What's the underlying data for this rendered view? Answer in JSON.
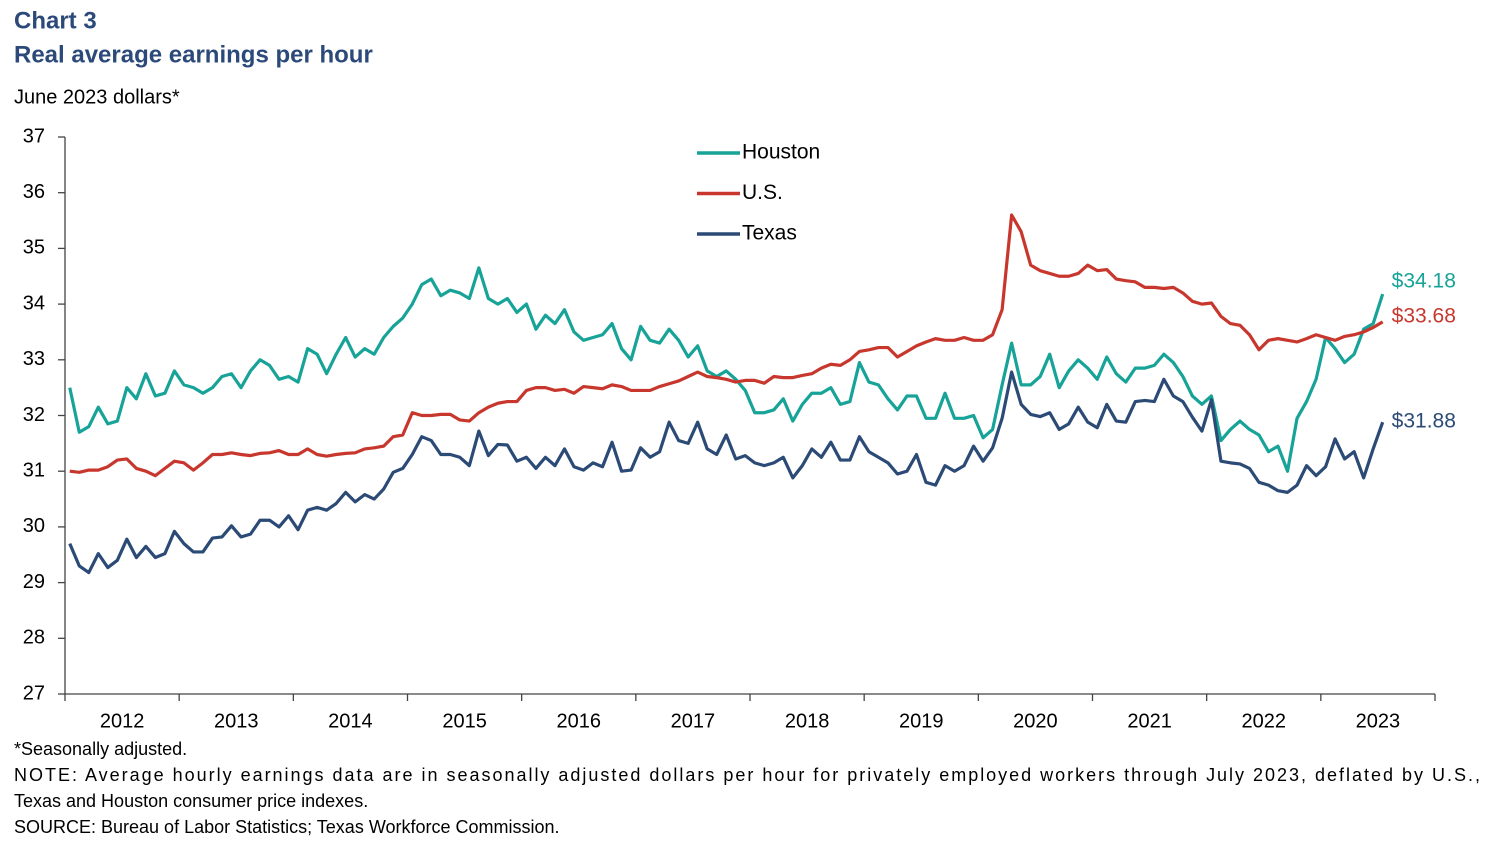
{
  "chart_data": {
    "type": "line",
    "title": "Chart 3",
    "subtitle": "Real average earnings per hour",
    "y_label": "June 2023 dollars*",
    "notes": [
      "*Seasonally adjusted.",
      "NOTE: Average hourly earnings data are in seasonally adjusted dollars per hour for privately employed workers through July 2023, deflated by U.S., Texas and Houston consumer price indexes.",
      "SOURCE: Bureau of Labor Statistics; Texas Workforce Commission."
    ],
    "legend": "top",
    "ylim": [
      27,
      37
    ],
    "yticks": [
      27,
      28,
      29,
      30,
      31,
      32,
      33,
      34,
      35,
      36,
      37
    ],
    "grid": false,
    "categories": [
      "2012",
      null,
      null,
      null,
      null,
      null,
      null,
      null,
      null,
      null,
      null,
      null,
      "2013",
      null,
      null,
      null,
      null,
      null,
      null,
      null,
      null,
      null,
      null,
      null,
      "2014",
      null,
      null,
      null,
      null,
      null,
      null,
      null,
      null,
      null,
      null,
      null,
      "2015",
      null,
      null,
      null,
      null,
      null,
      null,
      null,
      null,
      null,
      null,
      null,
      "2016",
      null,
      null,
      null,
      null,
      null,
      null,
      null,
      null,
      null,
      null,
      null,
      "2017",
      null,
      null,
      null,
      null,
      null,
      null,
      null,
      null,
      null,
      null,
      null,
      "2018",
      null,
      null,
      null,
      null,
      null,
      null,
      null,
      null,
      null,
      null,
      null,
      "2019",
      null,
      null,
      null,
      null,
      null,
      null,
      null,
      null,
      null,
      null,
      null,
      "2020",
      null,
      null,
      null,
      null,
      null,
      null,
      null,
      null,
      null,
      null,
      null,
      "2021",
      null,
      null,
      null,
      null,
      null,
      null,
      null,
      null,
      null,
      null,
      null,
      "2022",
      null,
      null,
      null,
      null,
      null,
      null,
      null,
      null,
      null,
      null,
      null,
      "2023",
      null,
      null,
      null,
      null,
      null,
      null
    ],
    "series": [
      {
        "name": "Houston",
        "color": "#17a398",
        "last_value_label": "$34.18",
        "values": [
          32.5,
          31.7,
          31.8,
          32.15,
          31.85,
          31.9,
          32.5,
          32.3,
          32.75,
          32.35,
          32.4,
          32.8,
          32.55,
          32.5,
          32.4,
          32.5,
          32.7,
          32.75,
          32.5,
          32.8,
          33.0,
          32.9,
          32.65,
          32.7,
          32.6,
          33.2,
          33.1,
          32.75,
          33.1,
          33.4,
          33.05,
          33.2,
          33.1,
          33.4,
          33.6,
          33.75,
          34.0,
          34.35,
          34.45,
          34.15,
          34.25,
          34.2,
          34.1,
          34.65,
          34.1,
          34.0,
          34.1,
          33.85,
          34.0,
          33.55,
          33.8,
          33.65,
          33.9,
          33.5,
          33.35,
          33.4,
          33.45,
          33.65,
          33.2,
          33.0,
          33.6,
          33.35,
          33.3,
          33.55,
          33.35,
          33.05,
          33.25,
          32.8,
          32.7,
          32.8,
          32.65,
          32.45,
          32.05,
          32.05,
          32.1,
          32.3,
          31.9,
          32.2,
          32.4,
          32.4,
          32.5,
          32.2,
          32.25,
          32.95,
          32.6,
          32.55,
          32.3,
          32.1,
          32.35,
          32.35,
          31.95,
          31.95,
          32.4,
          31.95,
          31.95,
          32.0,
          31.6,
          31.75,
          32.55,
          33.3,
          32.55,
          32.55,
          32.7,
          33.1,
          32.5,
          32.8,
          33.0,
          32.85,
          32.65,
          33.05,
          32.75,
          32.6,
          32.85,
          32.85,
          32.9,
          33.1,
          32.95,
          32.7,
          32.35,
          32.2,
          32.35,
          31.55,
          31.75,
          31.9,
          31.75,
          31.65,
          31.35,
          31.45,
          31.0,
          31.95,
          32.25,
          32.65,
          33.4,
          33.2,
          32.95,
          33.1,
          33.55,
          33.65,
          34.18
        ]
      },
      {
        "name": "U.S.",
        "color": "#c8372d",
        "last_value_label": "$33.68",
        "values": [
          31.0,
          30.98,
          31.02,
          31.02,
          31.08,
          31.2,
          31.22,
          31.05,
          31.0,
          30.92,
          31.05,
          31.18,
          31.15,
          31.02,
          31.15,
          31.3,
          31.3,
          31.33,
          31.3,
          31.28,
          31.32,
          31.33,
          31.37,
          31.3,
          31.3,
          31.4,
          31.3,
          31.27,
          31.3,
          31.32,
          31.33,
          31.4,
          31.42,
          31.45,
          31.62,
          31.65,
          32.05,
          32.0,
          32.0,
          32.02,
          32.02,
          31.92,
          31.9,
          32.05,
          32.15,
          32.22,
          32.25,
          32.25,
          32.45,
          32.5,
          32.5,
          32.45,
          32.47,
          32.4,
          32.52,
          32.5,
          32.48,
          32.55,
          32.52,
          32.45,
          32.45,
          32.45,
          32.52,
          32.57,
          32.62,
          32.7,
          32.78,
          32.7,
          32.68,
          32.65,
          32.6,
          32.63,
          32.63,
          32.58,
          32.7,
          32.68,
          32.68,
          32.72,
          32.75,
          32.85,
          32.92,
          32.9,
          33.0,
          33.15,
          33.18,
          33.22,
          33.22,
          33.05,
          33.15,
          33.25,
          33.32,
          33.38,
          33.35,
          33.35,
          33.4,
          33.35,
          33.35,
          33.45,
          33.9,
          35.6,
          35.3,
          34.7,
          34.6,
          34.55,
          34.5,
          34.5,
          34.55,
          34.7,
          34.6,
          34.62,
          34.45,
          34.42,
          34.4,
          34.3,
          34.3,
          34.28,
          34.3,
          34.2,
          34.05,
          34.0,
          34.02,
          33.78,
          33.65,
          33.62,
          33.45,
          33.18,
          33.35,
          33.38,
          33.35,
          33.32,
          33.38,
          33.45,
          33.4,
          33.35,
          33.42,
          33.45,
          33.5,
          33.58,
          33.68
        ]
      },
      {
        "name": "Texas",
        "color": "#2b4a76",
        "last_value_label": "$31.88",
        "values": [
          29.7,
          29.3,
          29.18,
          29.52,
          29.27,
          29.4,
          29.78,
          29.45,
          29.65,
          29.45,
          29.52,
          29.92,
          29.7,
          29.55,
          29.55,
          29.8,
          29.82,
          30.02,
          29.82,
          29.87,
          30.12,
          30.12,
          30.0,
          30.2,
          29.95,
          30.3,
          30.35,
          30.3,
          30.42,
          30.62,
          30.45,
          30.58,
          30.5,
          30.68,
          30.98,
          31.05,
          31.3,
          31.62,
          31.55,
          31.3,
          31.3,
          31.25,
          31.1,
          31.72,
          31.28,
          31.48,
          31.47,
          31.18,
          31.25,
          31.05,
          31.25,
          31.1,
          31.4,
          31.08,
          31.02,
          31.15,
          31.08,
          31.52,
          31.0,
          31.02,
          31.42,
          31.25,
          31.35,
          31.88,
          31.55,
          31.5,
          31.88,
          31.4,
          31.3,
          31.65,
          31.22,
          31.28,
          31.15,
          31.1,
          31.15,
          31.25,
          30.88,
          31.1,
          31.4,
          31.25,
          31.52,
          31.2,
          31.2,
          31.62,
          31.35,
          31.25,
          31.15,
          30.95,
          31.0,
          31.3,
          30.8,
          30.75,
          31.1,
          31.0,
          31.1,
          31.45,
          31.18,
          31.42,
          31.95,
          32.78,
          32.2,
          32.02,
          31.98,
          32.05,
          31.75,
          31.85,
          32.15,
          31.88,
          31.78,
          32.2,
          31.9,
          31.88,
          32.25,
          32.27,
          32.25,
          32.65,
          32.35,
          32.25,
          31.97,
          31.72,
          32.28,
          31.18,
          31.15,
          31.13,
          31.05,
          30.8,
          30.75,
          30.65,
          30.62,
          30.75,
          31.1,
          30.92,
          31.08,
          31.58,
          31.22,
          31.35,
          30.88,
          31.4,
          31.88
        ]
      }
    ]
  }
}
